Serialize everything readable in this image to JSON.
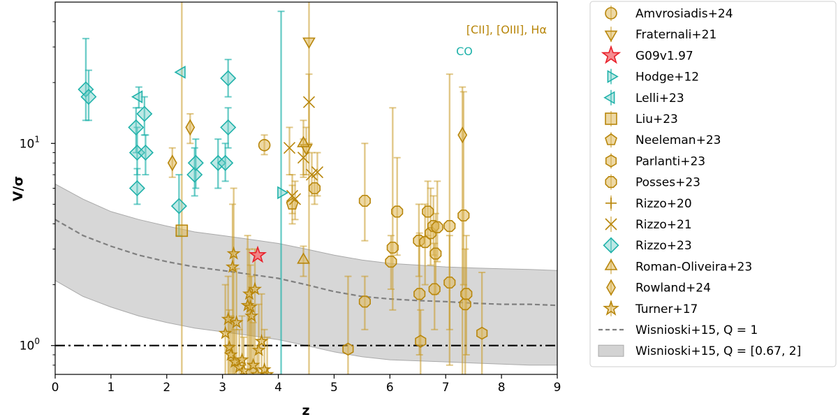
{
  "chart_data": {
    "type": "scatter",
    "title": "",
    "xlabel": "z",
    "ylabel": "V/σ",
    "xlim": [
      0,
      9
    ],
    "ylim": [
      0.72,
      50
    ],
    "yscale": "log",
    "x_ticks": [
      "0",
      "1",
      "2",
      "3",
      "4",
      "5",
      "6",
      "7",
      "8",
      "9"
    ],
    "y_ticks": [
      {
        "value": 1,
        "base": "10",
        "exp": "0"
      },
      {
        "value": 10,
        "base": "10",
        "exp": "1"
      }
    ],
    "grid": false,
    "legend_position": "outside-right",
    "colors": {
      "gold": "#b8860b",
      "teal": "#20b2aa",
      "red": "#e8202a",
      "band": "#d3d3d3",
      "dashed": "#808080"
    },
    "annotations": [
      {
        "text": "[CII], [OIII], Hα",
        "color": "#b8860b"
      },
      {
        "text": "CO",
        "color": "#20b2aa"
      }
    ],
    "reference_lines": [
      {
        "name": "V/σ = 1",
        "y": 1,
        "style": "dashdot"
      }
    ],
    "model": {
      "name": "Wisnioski+15, Q = 1",
      "z": [
        0,
        0.5,
        1,
        1.5,
        2,
        2.5,
        3,
        3.5,
        4,
        4.5,
        5,
        5.5,
        6,
        6.5,
        7,
        7.5,
        8,
        8.5,
        9
      ],
      "mid": [
        4.2,
        3.5,
        3.1,
        2.8,
        2.6,
        2.45,
        2.35,
        2.25,
        2.15,
        2.0,
        1.85,
        1.75,
        1.7,
        1.67,
        1.65,
        1.62,
        1.6,
        1.6,
        1.58
      ],
      "high": [
        6.3,
        5.3,
        4.6,
        4.2,
        3.9,
        3.65,
        3.5,
        3.35,
        3.2,
        3.0,
        2.8,
        2.65,
        2.55,
        2.5,
        2.45,
        2.42,
        2.4,
        2.38,
        2.35
      ],
      "low": [
        2.1,
        1.75,
        1.55,
        1.4,
        1.3,
        1.22,
        1.17,
        1.12,
        1.07,
        1.0,
        0.93,
        0.88,
        0.85,
        0.84,
        0.83,
        0.82,
        0.81,
        0.8,
        0.8
      ]
    },
    "band_label": "Wisnioski+15, Q = [0.67, 2]",
    "series": [
      {
        "name": "Amvrosiadis+24",
        "marker": "circle",
        "color": "gold",
        "points": [
          {
            "x": 3.75,
            "y": 9.8,
            "lo": 8.8,
            "hi": 11.0
          }
        ]
      },
      {
        "name": "Fraternali+21",
        "marker": "triangle-down",
        "color": "gold",
        "points": [
          {
            "x": 4.55,
            "y": 32,
            "lo": 0.5,
            "hi": 60
          },
          {
            "x": 4.5,
            "y": 9.5,
            "lo": 7.0,
            "hi": 12
          }
        ]
      },
      {
        "name": "G09v1.97",
        "marker": "star",
        "color": "red",
        "points": [
          {
            "x": 3.63,
            "y": 2.8
          }
        ]
      },
      {
        "name": "Hodge+12",
        "marker": "triangle-right",
        "color": "teal",
        "points": [
          {
            "x": 4.05,
            "y": 5.7,
            "lo": 0.5,
            "hi": 45
          }
        ]
      },
      {
        "name": "Lelli+23",
        "marker": "triangle-left",
        "color": "teal",
        "points": [
          {
            "x": 2.27,
            "y": 22.5
          },
          {
            "x": 1.5,
            "y": 17,
            "lo": 15,
            "hi": 19
          }
        ]
      },
      {
        "name": "Liu+23",
        "marker": "square",
        "color": "gold",
        "points": [
          {
            "x": 2.27,
            "y": 3.7,
            "lo": 0.5,
            "hi": 60
          }
        ]
      },
      {
        "name": "Neeleman+23",
        "marker": "pentagon",
        "color": "gold",
        "points": [
          {
            "x": 4.25,
            "y": 5.0,
            "lo": 4.0,
            "hi": 6.2
          }
        ]
      },
      {
        "name": "Parlanti+23",
        "marker": "hexagon",
        "color": "gold",
        "points": [
          {
            "x": 5.25,
            "y": 0.96,
            "lo": 0.72,
            "hi": 2.2
          },
          {
            "x": 6.55,
            "y": 1.05,
            "lo": 0.72,
            "hi": 1.5
          },
          {
            "x": 7.65,
            "y": 1.15,
            "lo": 0.72,
            "hi": 2.3
          }
        ]
      },
      {
        "name": "Posses+23",
        "marker": "octagon",
        "color": "gold",
        "points": [
          {
            "x": 4.65,
            "y": 6.0,
            "lo": 5.0,
            "hi": 7.0
          },
          {
            "x": 5.55,
            "y": 5.2,
            "lo": 3.3,
            "hi": 10
          },
          {
            "x": 5.55,
            "y": 1.65,
            "lo": 1.2,
            "hi": 2.2
          },
          {
            "x": 6.02,
            "y": 2.6,
            "lo": 1.9,
            "hi": 3.5
          },
          {
            "x": 6.05,
            "y": 3.05,
            "lo": 1.5,
            "hi": 15
          },
          {
            "x": 6.13,
            "y": 4.6,
            "lo": 2.8,
            "hi": 8.5
          },
          {
            "x": 6.52,
            "y": 3.3,
            "lo": 2.2,
            "hi": 5.0
          },
          {
            "x": 6.53,
            "y": 1.8,
            "lo": 0.9,
            "hi": 3.6
          },
          {
            "x": 6.63,
            "y": 3.25,
            "lo": 2.0,
            "hi": 5.0
          },
          {
            "x": 6.68,
            "y": 4.6,
            "lo": 3.5,
            "hi": 6.5
          },
          {
            "x": 6.73,
            "y": 3.6,
            "lo": 2.5,
            "hi": 6.0
          },
          {
            "x": 6.78,
            "y": 3.9,
            "lo": 2.8,
            "hi": 5.5
          },
          {
            "x": 6.8,
            "y": 1.9,
            "lo": 1.2,
            "hi": 3.2
          },
          {
            "x": 6.82,
            "y": 2.85,
            "lo": 1.8,
            "hi": 4.5
          },
          {
            "x": 6.85,
            "y": 3.85,
            "lo": 2.6,
            "hi": 6.5
          },
          {
            "x": 7.07,
            "y": 3.9,
            "lo": 0.8,
            "hi": 22
          },
          {
            "x": 7.07,
            "y": 2.05,
            "lo": 1.2,
            "hi": 3.5
          },
          {
            "x": 7.32,
            "y": 4.4,
            "lo": 2.0,
            "hi": 18
          },
          {
            "x": 7.35,
            "y": 1.6,
            "lo": 0.72,
            "hi": 3.0
          },
          {
            "x": 7.37,
            "y": 1.8,
            "lo": 0.9,
            "hi": 3.5
          }
        ]
      },
      {
        "name": "Rizzo+20",
        "marker": "plus",
        "color": "gold",
        "points": []
      },
      {
        "name": "Rizzo+21",
        "marker": "x",
        "color": "gold",
        "points": [
          {
            "x": 4.2,
            "y": 9.5,
            "lo": 7.0,
            "hi": 12
          },
          {
            "x": 4.25,
            "y": 5.5,
            "lo": 4.5,
            "hi": 7.0
          },
          {
            "x": 4.3,
            "y": 5.3,
            "lo": 4.2,
            "hi": 6.5
          },
          {
            "x": 4.45,
            "y": 8.5,
            "lo": 6.8,
            "hi": 10.5
          },
          {
            "x": 4.55,
            "y": 16,
            "lo": 10,
            "hi": 22
          },
          {
            "x": 4.6,
            "y": 7.0,
            "lo": 5.5,
            "hi": 9.0
          },
          {
            "x": 4.7,
            "y": 7.2,
            "lo": 5.5,
            "hi": 9.0
          }
        ]
      },
      {
        "name": "Rizzo+23",
        "marker": "diamond",
        "color": "teal",
        "points": [
          {
            "x": 0.55,
            "y": 18.5,
            "lo": 13,
            "hi": 33
          },
          {
            "x": 0.6,
            "y": 17,
            "lo": 13,
            "hi": 23
          },
          {
            "x": 1.45,
            "y": 12,
            "lo": 9,
            "hi": 15
          },
          {
            "x": 1.47,
            "y": 9.0,
            "lo": 7,
            "hi": 12
          },
          {
            "x": 1.47,
            "y": 6.0,
            "lo": 5,
            "hi": 7.5
          },
          {
            "x": 1.6,
            "y": 14,
            "lo": 11,
            "hi": 17
          },
          {
            "x": 1.62,
            "y": 9.0,
            "lo": 7,
            "hi": 11
          },
          {
            "x": 2.22,
            "y": 4.9,
            "lo": 3.5,
            "hi": 7
          },
          {
            "x": 2.5,
            "y": 7.0,
            "lo": 5.5,
            "hi": 9.5
          },
          {
            "x": 2.52,
            "y": 8.0,
            "lo": 6,
            "hi": 10.5
          },
          {
            "x": 2.92,
            "y": 8.0,
            "lo": 6,
            "hi": 10.5
          },
          {
            "x": 3.05,
            "y": 8.0,
            "lo": 6.5,
            "hi": 10
          },
          {
            "x": 3.1,
            "y": 12,
            "lo": 9.5,
            "hi": 15
          },
          {
            "x": 3.1,
            "y": 21,
            "lo": 17,
            "hi": 26
          }
        ]
      },
      {
        "name": "Roman-Oliveira+23",
        "marker": "triangle-up",
        "color": "gold",
        "points": [
          {
            "x": 4.45,
            "y": 10,
            "lo": 7,
            "hi": 13
          },
          {
            "x": 4.45,
            "y": 2.65,
            "lo": 2.2,
            "hi": 3.1
          }
        ]
      },
      {
        "name": "Rowland+24",
        "marker": "thin-diamond",
        "color": "gold",
        "points": [
          {
            "x": 2.1,
            "y": 8.0,
            "lo": 6.8,
            "hi": 9.5
          },
          {
            "x": 2.42,
            "y": 12,
            "lo": 10,
            "hi": 14
          },
          {
            "x": 7.3,
            "y": 11,
            "lo": 0.72,
            "hi": 19
          }
        ]
      },
      {
        "name": "Turner+17",
        "marker": "star",
        "color": "gold",
        "points": [
          {
            "x": 3.2,
            "y": 2.85,
            "lo": 0.72,
            "hi": 6.0
          },
          {
            "x": 3.18,
            "y": 2.45,
            "lo": 0.72,
            "hi": 5.0
          },
          {
            "x": 3.05,
            "y": 1.15,
            "lo": 0.72,
            "hi": 2.0
          },
          {
            "x": 3.1,
            "y": 1.35,
            "lo": 0.72,
            "hi": 2.2
          },
          {
            "x": 3.12,
            "y": 0.98,
            "lo": 0.72,
            "hi": 1.5
          },
          {
            "x": 3.15,
            "y": 0.9,
            "lo": 0.72,
            "hi": 1.4
          },
          {
            "x": 3.22,
            "y": 0.83,
            "lo": 0.72,
            "hi": 1.2
          },
          {
            "x": 3.25,
            "y": 1.3,
            "lo": 0.72,
            "hi": 2.4
          },
          {
            "x": 3.3,
            "y": 0.78,
            "lo": 0.72,
            "hi": 1.2
          },
          {
            "x": 3.35,
            "y": 0.85,
            "lo": 0.72,
            "hi": 1.4
          },
          {
            "x": 3.38,
            "y": 0.75,
            "lo": 0.72,
            "hi": 1.1
          },
          {
            "x": 3.45,
            "y": 1.58,
            "lo": 0.72,
            "hi": 3.5
          },
          {
            "x": 3.48,
            "y": 1.8,
            "lo": 0.72,
            "hi": 3.0
          },
          {
            "x": 3.5,
            "y": 1.55,
            "lo": 0.72,
            "hi": 2.5
          },
          {
            "x": 3.52,
            "y": 1.4,
            "lo": 0.72,
            "hi": 2.2
          },
          {
            "x": 3.55,
            "y": 0.8,
            "lo": 0.72,
            "hi": 1.3
          },
          {
            "x": 3.58,
            "y": 1.9,
            "lo": 0.72,
            "hi": 3.0
          },
          {
            "x": 3.62,
            "y": 0.72,
            "lo": 0.72,
            "hi": 1.0
          },
          {
            "x": 3.65,
            "y": 0.95,
            "lo": 0.72,
            "hi": 1.6
          },
          {
            "x": 3.7,
            "y": 1.05,
            "lo": 0.72,
            "hi": 1.8
          },
          {
            "x": 3.75,
            "y": 0.76,
            "lo": 0.72,
            "hi": 1.2
          },
          {
            "x": 3.8,
            "y": 0.72,
            "lo": 0.72,
            "hi": 1.1
          }
        ]
      },
      {
        "name": "Wisnioski+15, Q = 1",
        "marker": "dashed-line",
        "color": "dashed",
        "points": []
      },
      {
        "name": "Wisnioski+15, Q = [0.67, 2]",
        "marker": "band",
        "color": "band",
        "points": []
      }
    ]
  }
}
